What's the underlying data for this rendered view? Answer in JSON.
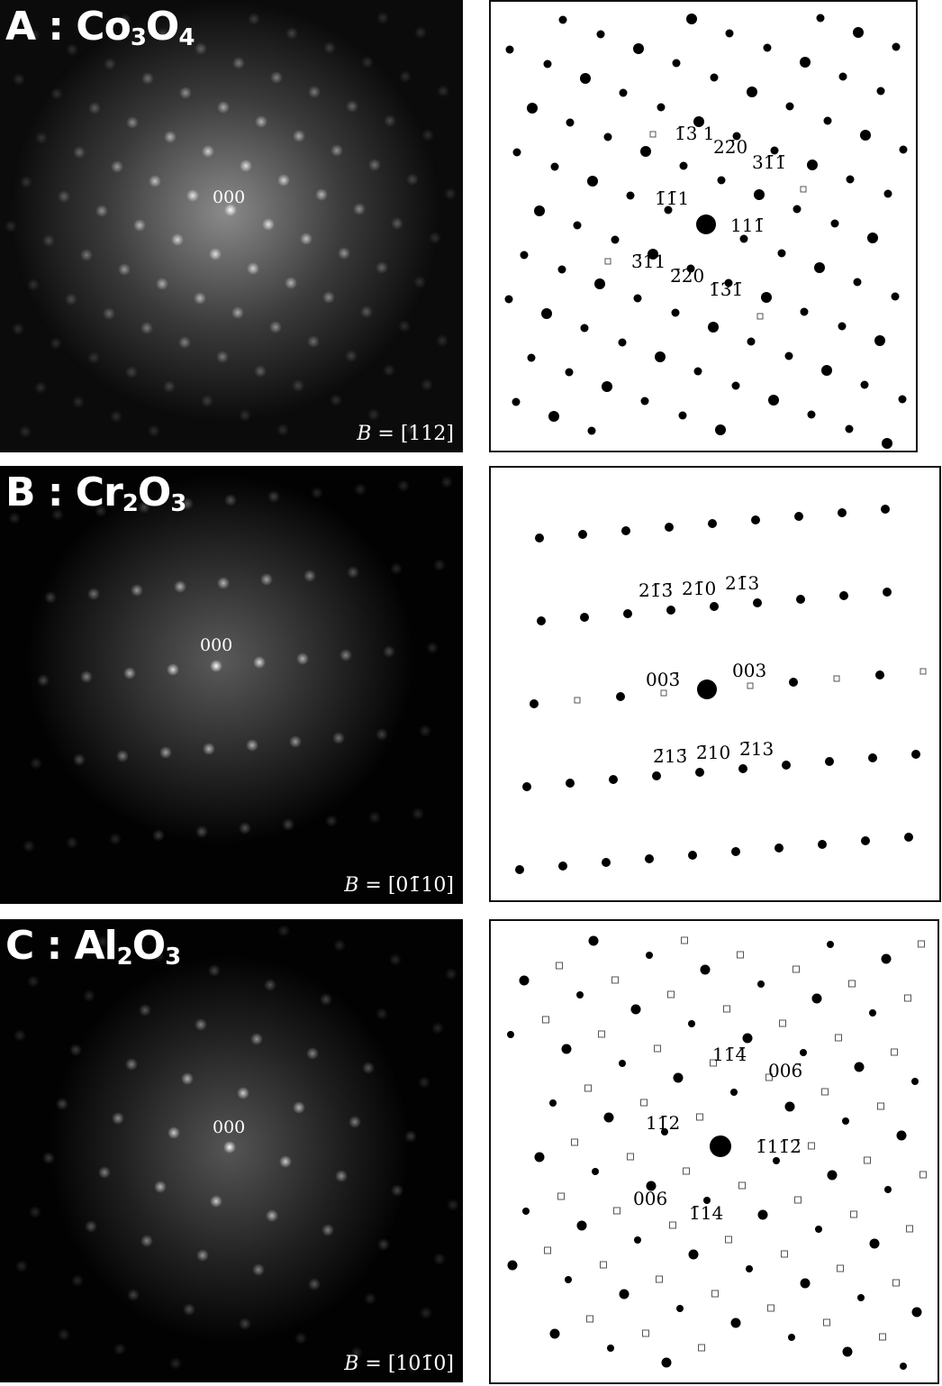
{
  "panels": [
    {
      "id": "A",
      "label_prefix": "A : ",
      "formula": [
        [
          "Co",
          ""
        ],
        [
          "",
          "3"
        ],
        [
          "O",
          ""
        ],
        [
          "",
          "4"
        ]
      ],
      "origin": "000",
      "zone_axis_symbol": "B",
      "zone_axis_value": " = [112]",
      "colors": {
        "spot": "#000000",
        "square": "#555555"
      },
      "indices": [
        "1̄3 1",
        "22̄0",
        "31̄1̄",
        "1̄1̄1",
        "111̄",
        "3̄11",
        "2̄20",
        "1̄31̄"
      ]
    },
    {
      "id": "B",
      "label_prefix": "B : ",
      "formula": [
        [
          "Cr",
          ""
        ],
        [
          "",
          "2"
        ],
        [
          "O",
          ""
        ],
        [
          "",
          "3"
        ]
      ],
      "origin": "000",
      "zone_axis_symbol": "B",
      "zone_axis_value": " = [01̄10]",
      "colors": {
        "spot": "#000000",
        "square": "#555555"
      },
      "indices": [
        "21̄3̄",
        "21̄0",
        "21̄3",
        "003̄",
        "003",
        "2̄13̄",
        "2̄10",
        "2̄13"
      ]
    },
    {
      "id": "C",
      "label_prefix": "C : ",
      "formula": [
        [
          "Al",
          ""
        ],
        [
          "",
          "2"
        ],
        [
          "O",
          ""
        ],
        [
          "",
          "3"
        ]
      ],
      "origin": "000",
      "zone_axis_symbol": "B",
      "zone_axis_value": " = [101̄0]",
      "colors": {
        "spot": "#000000",
        "square": "#555555"
      },
      "indices": [
        "11̄4̄",
        "006̄",
        "11̄2",
        "1̄11̄2̄",
        "006",
        "1̄14"
      ]
    }
  ]
}
